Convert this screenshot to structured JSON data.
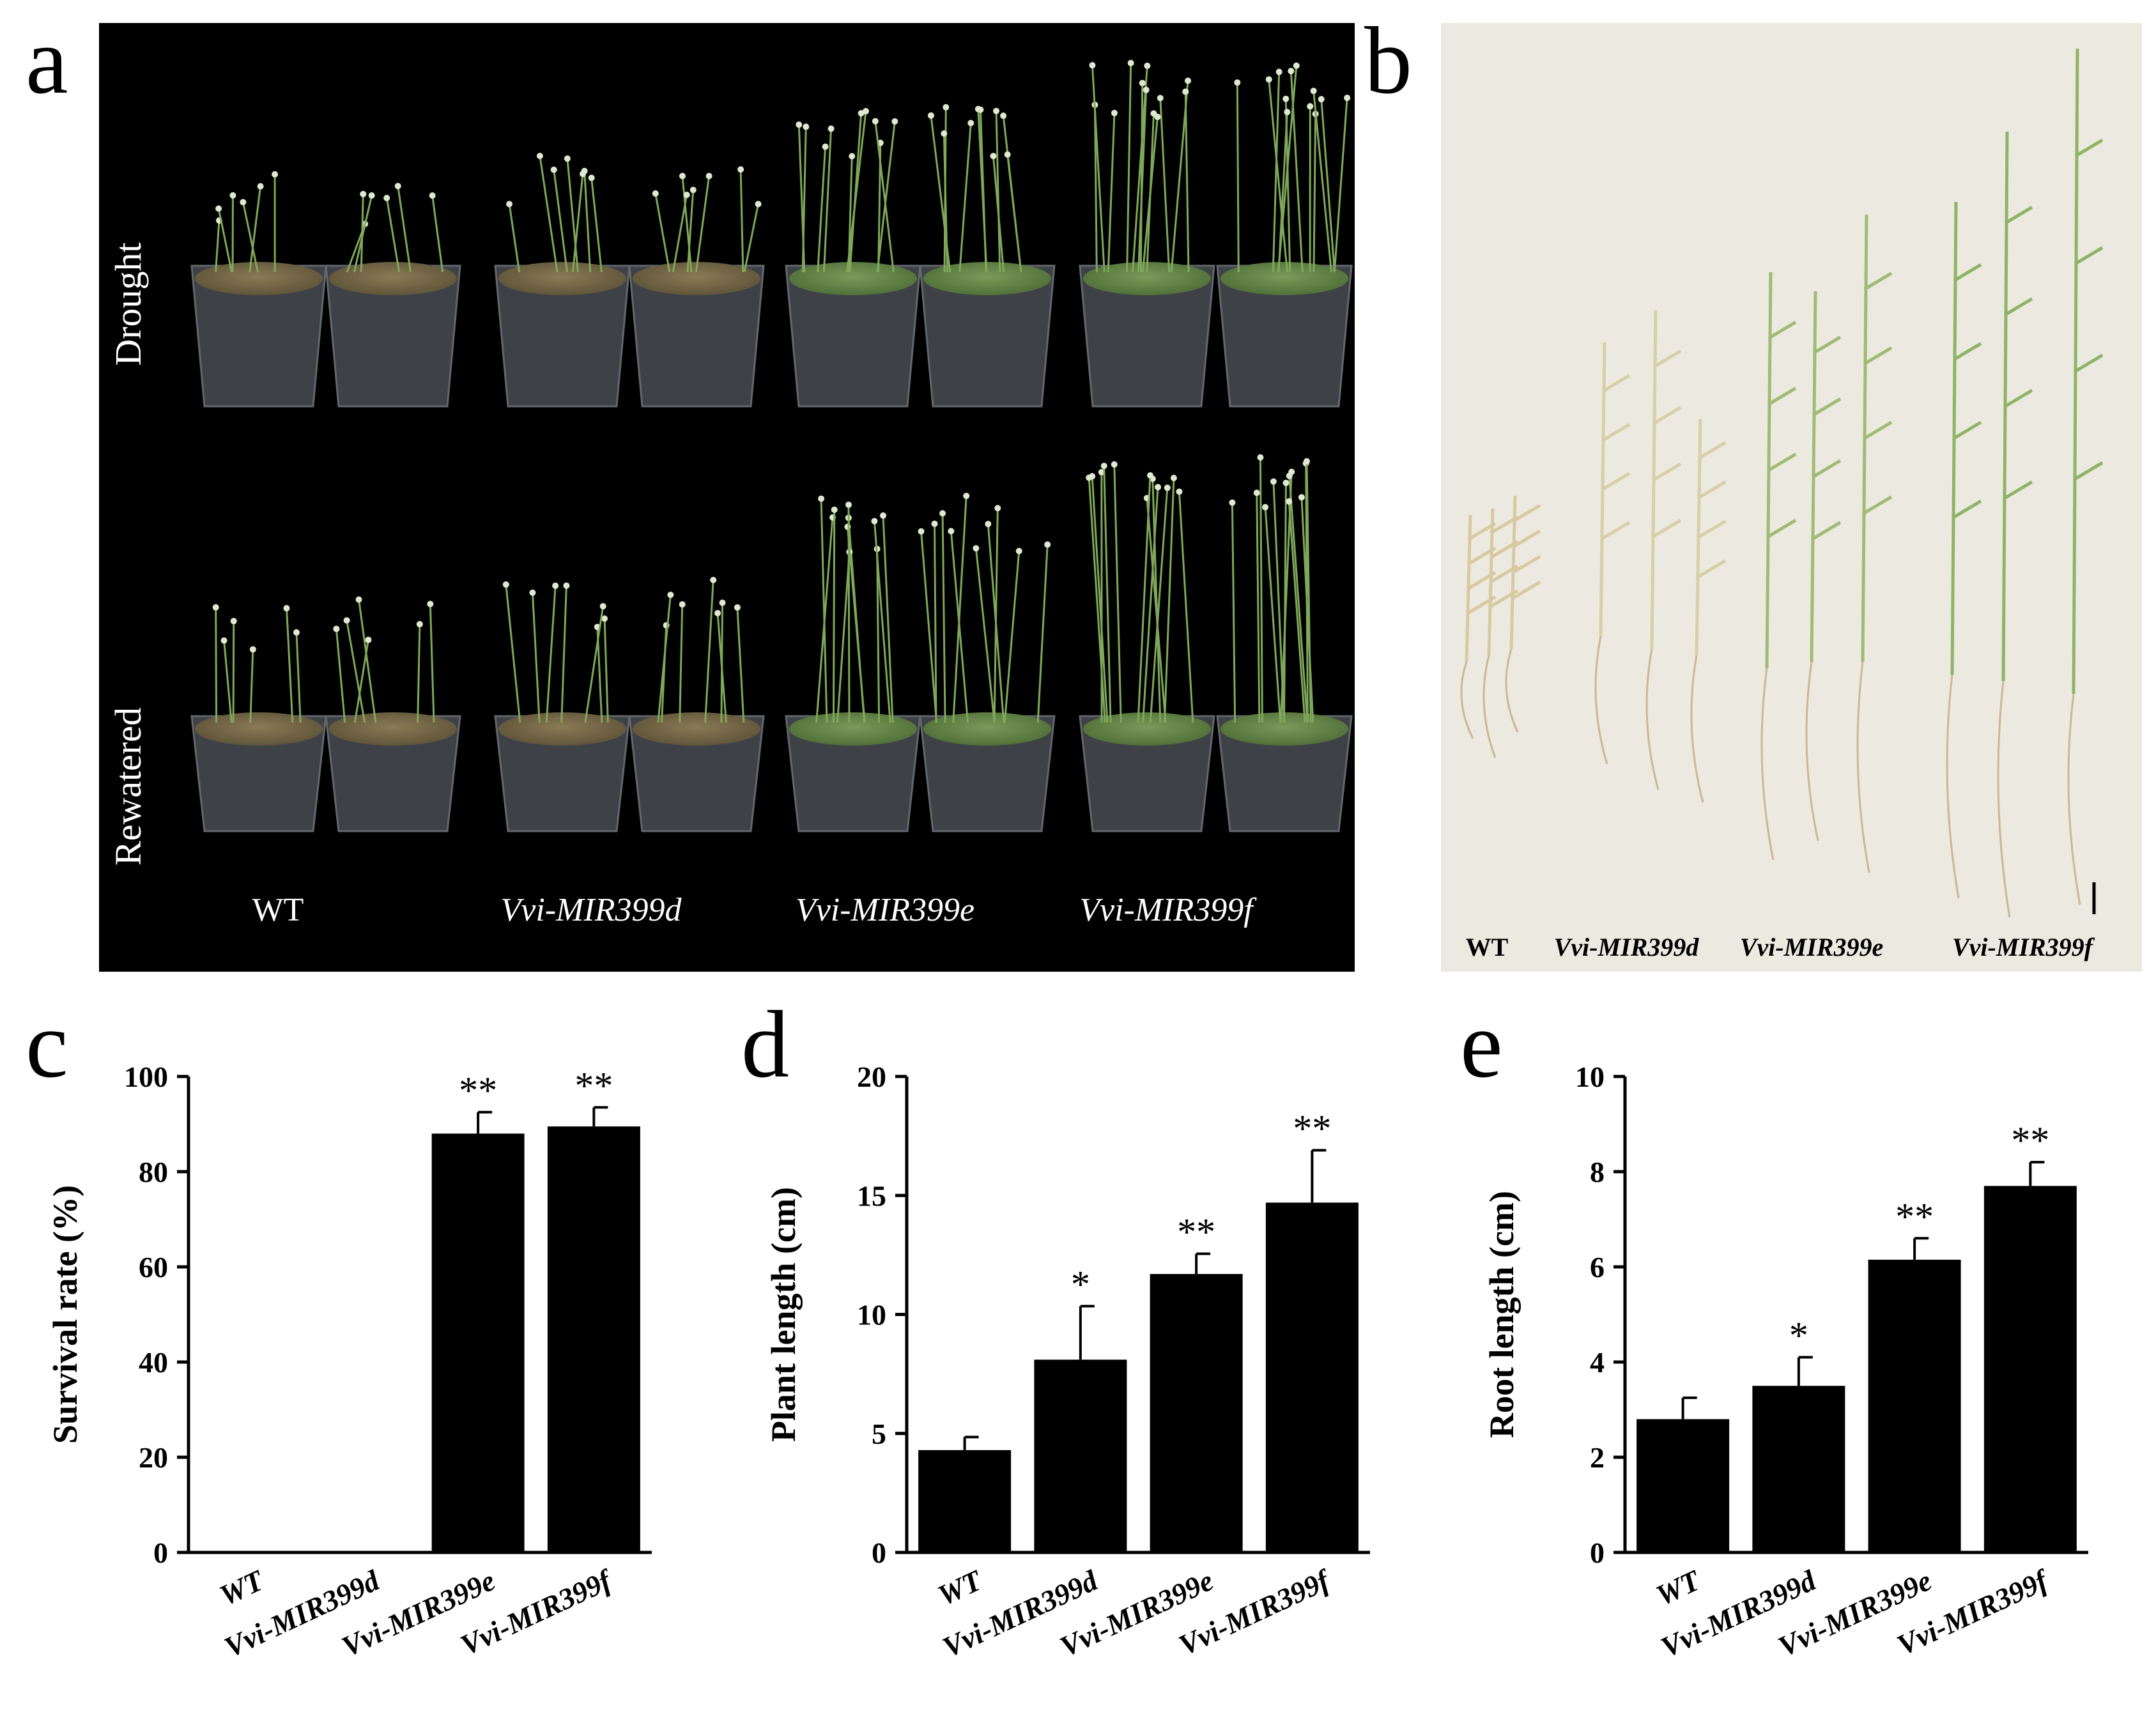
{
  "panels": {
    "a": {
      "letter": "a",
      "row_labels": [
        "Drought",
        "Rewatered"
      ],
      "genotypes": [
        "WT",
        "Vvi-MIR399d",
        "Vvi-MIR399e",
        "Vvi-MIR399f"
      ],
      "colors": {
        "background": "#000000",
        "label": "#ffffff"
      }
    },
    "b": {
      "letter": "b",
      "genotypes": [
        "WT",
        "Vvi-MIR399d",
        "Vvi-MIR399e",
        "Vvi-MIR399f"
      ],
      "colors": {
        "background": "#ece9e1",
        "label": "#000000"
      }
    },
    "c": {
      "letter": "c"
    },
    "d": {
      "letter": "d"
    },
    "e": {
      "letter": "e"
    }
  },
  "chart_data": [
    {
      "id": "c",
      "type": "bar",
      "categories": [
        "WT",
        "Vvi-MIR399d",
        "Vvi-MIR399e",
        "Vvi-MIR399f"
      ],
      "values": [
        0,
        0,
        88,
        89.5
      ],
      "errors": [
        0,
        0,
        4.5,
        4
      ],
      "significance": [
        "",
        "",
        "**",
        "**"
      ],
      "ylabel": "Survival rate (%)",
      "ylim": [
        0,
        100
      ],
      "yticks": [
        0,
        20,
        40,
        60,
        80,
        100
      ],
      "bar_color": "#000000"
    },
    {
      "id": "d",
      "type": "bar",
      "categories": [
        "WT",
        "Vvi-MIR399d",
        "Vvi-MIR399e",
        "Vvi-MIR399f"
      ],
      "values": [
        4.3,
        8.1,
        11.7,
        14.7
      ],
      "errors": [
        0.55,
        2.25,
        0.85,
        2.2
      ],
      "significance": [
        "",
        "*",
        "**",
        "**"
      ],
      "ylabel": "Plant length (cm)",
      "ylim": [
        0,
        20
      ],
      "yticks": [
        0,
        5,
        10,
        15,
        20
      ],
      "bar_color": "#000000"
    },
    {
      "id": "e",
      "type": "bar",
      "categories": [
        "WT",
        "Vvi-MIR399d",
        "Vvi-MIR399e",
        "Vvi-MIR399f"
      ],
      "values": [
        2.8,
        3.5,
        6.15,
        7.7
      ],
      "errors": [
        0.45,
        0.6,
        0.45,
        0.5
      ],
      "significance": [
        "",
        "*",
        "**",
        "**"
      ],
      "ylabel": "Root length (cm)",
      "ylim": [
        0,
        10
      ],
      "yticks": [
        0,
        2,
        4,
        6,
        8,
        10
      ],
      "bar_color": "#000000"
    }
  ]
}
